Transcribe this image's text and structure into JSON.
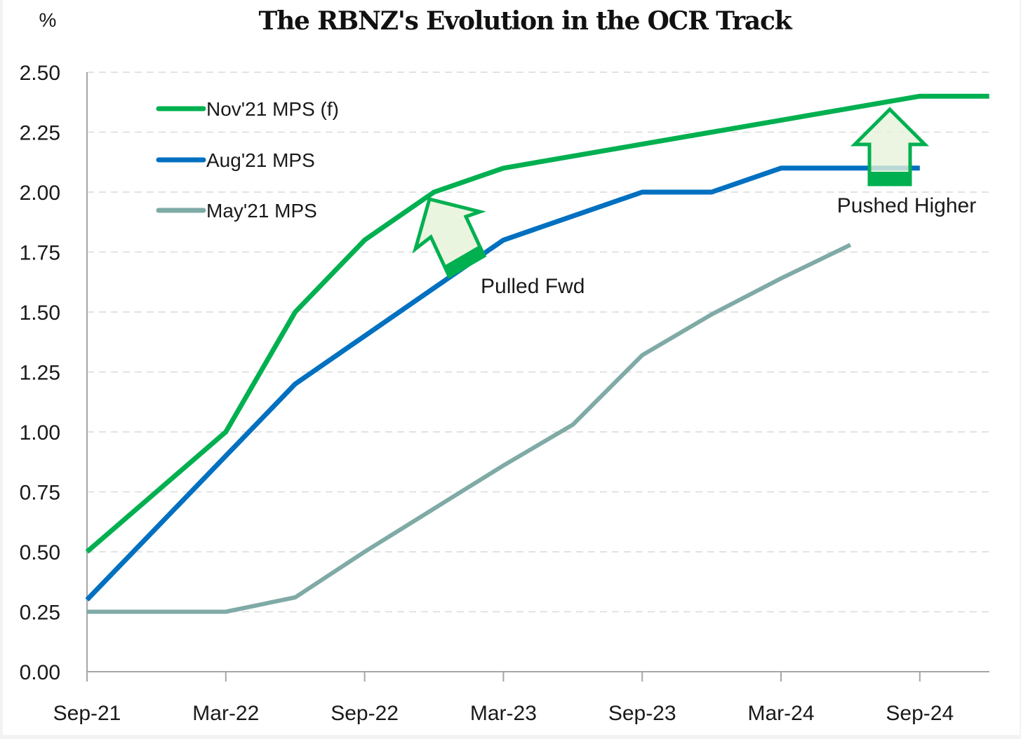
{
  "chart_data": {
    "type": "line",
    "title": "The RBNZ's Evolution in the OCR Track",
    "ylabel": "%",
    "xlabel": "",
    "ylim": [
      0,
      2.5
    ],
    "yticks": [
      0,
      0.25,
      0.5,
      0.75,
      1.0,
      1.25,
      1.5,
      1.75,
      2.0,
      2.25,
      2.5
    ],
    "ytick_labels": [
      "0.00",
      "0.25",
      "0.50",
      "0.75",
      "1.00",
      "1.25",
      "1.50",
      "1.75",
      "2.00",
      "2.25",
      "2.50"
    ],
    "x": [
      "Sep-21",
      "Dec-21",
      "Mar-22",
      "Jun-22",
      "Sep-22",
      "Dec-22",
      "Mar-23",
      "Jun-23",
      "Sep-23",
      "Dec-23",
      "Mar-24",
      "Jun-24",
      "Sep-24",
      "Dec-24"
    ],
    "xticks": [
      "Sep-21",
      "Mar-22",
      "Sep-22",
      "Mar-23",
      "Sep-23",
      "Mar-24",
      "Sep-24"
    ],
    "grid": "horizontal dashed",
    "legend_position": "top-left",
    "series": [
      {
        "name": "Nov'21 MPS (f)",
        "color": "#00b050",
        "values": [
          0.5,
          0.75,
          1.0,
          1.5,
          1.8,
          2.0,
          2.1,
          2.15,
          2.2,
          2.25,
          2.3,
          2.35,
          2.4,
          2.4
        ]
      },
      {
        "name": "Aug'21 MPS",
        "color": "#0070c0",
        "values": [
          0.3,
          0.6,
          0.9,
          1.2,
          1.4,
          1.6,
          1.8,
          1.9,
          2.0,
          2.0,
          2.1,
          2.1,
          2.1,
          null
        ]
      },
      {
        "name": "May'21 MPS",
        "color": "#7faaa6",
        "values": [
          0.25,
          0.25,
          0.25,
          0.31,
          0.5,
          0.68,
          0.86,
          1.03,
          1.32,
          1.49,
          1.64,
          1.78,
          null,
          null
        ]
      }
    ],
    "annotations": [
      {
        "text": "Pulled Fwd",
        "type": "arrow",
        "near": "Dec-22"
      },
      {
        "text": "Pushed Higher",
        "type": "arrow",
        "near": "Jun-24"
      }
    ]
  },
  "colors": {
    "arrow_fill": "#e6f3da",
    "arrow_stroke": "#00b050",
    "grid": "#d9d9d9",
    "axis": "#a6a6a6"
  }
}
